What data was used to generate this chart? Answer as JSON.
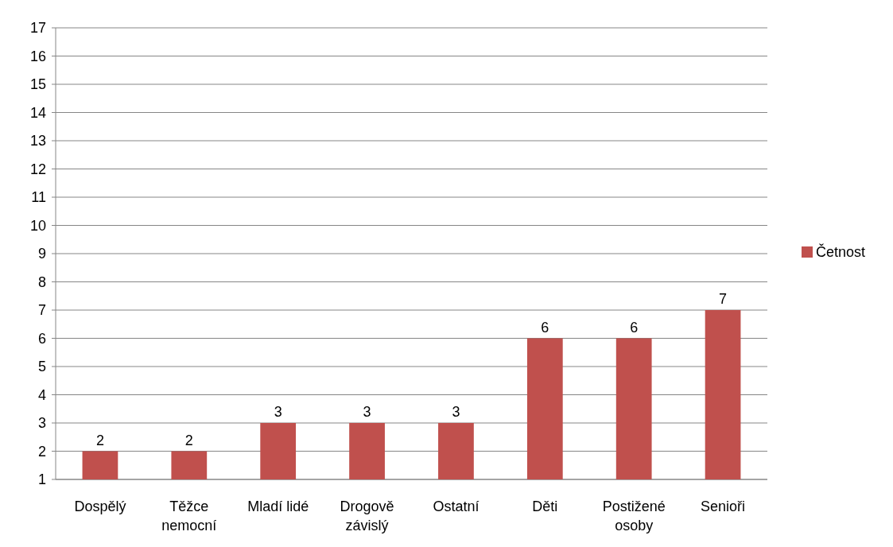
{
  "chart_data": {
    "type": "bar",
    "categories": [
      "Dospělý",
      "Těžce nemocní",
      "Mladí lidé",
      "Drogově závislý",
      "Ostatní",
      "Děti",
      "Postižené osoby",
      "Senioři"
    ],
    "series": [
      {
        "name": "Četnost",
        "color": "#c0504d",
        "values": [
          2,
          2,
          3,
          3,
          3,
          6,
          6,
          7
        ]
      }
    ],
    "ylim": [
      1,
      17
    ],
    "yticks": [
      1,
      2,
      3,
      4,
      5,
      6,
      7,
      8,
      9,
      10,
      11,
      12,
      13,
      14,
      15,
      16,
      17
    ],
    "grid": "y",
    "legend": "right",
    "data_labels": true
  }
}
